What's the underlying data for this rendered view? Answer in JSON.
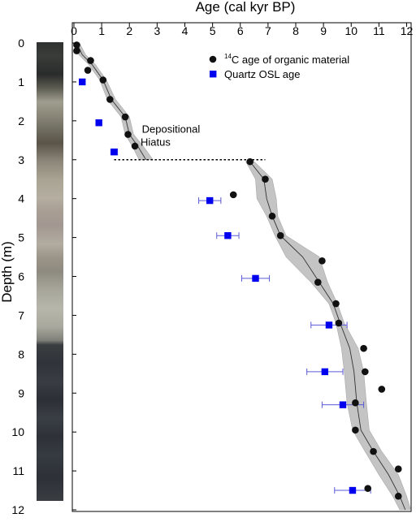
{
  "chart_data": {
    "type": "scatter",
    "xlabel": "Age (cal kyr BP)",
    "ylabel": "Depth (m)",
    "xlim": [
      0,
      12
    ],
    "ylim": [
      0,
      12
    ],
    "x_axis_position": "top",
    "y_axis_inverted": true,
    "x_ticks": [
      "0",
      "1",
      "2",
      "3",
      "4",
      "5",
      "6",
      "7",
      "8",
      "9",
      "10",
      "11",
      "12"
    ],
    "y_ticks": [
      "0",
      "1",
      "2",
      "3",
      "4",
      "5",
      "6",
      "7",
      "8",
      "9",
      "10",
      "11",
      "12"
    ],
    "legend_position": "top-right",
    "grid": false,
    "series": [
      {
        "name": "14C age of organic material",
        "legend_label": {
          "sup": "14",
          "text": "C age of organic material"
        },
        "marker": "circle",
        "color": "#111111",
        "points": [
          {
            "x": 0.1,
            "y": 0.05
          },
          {
            "x": 0.1,
            "y": 0.2
          },
          {
            "x": 0.6,
            "y": 0.45
          },
          {
            "x": 0.5,
            "y": 0.7
          },
          {
            "x": 1.05,
            "y": 0.95
          },
          {
            "x": 1.3,
            "y": 1.45
          },
          {
            "x": 1.85,
            "y": 1.9
          },
          {
            "x": 1.95,
            "y": 2.35
          },
          {
            "x": 2.2,
            "y": 2.65
          },
          {
            "x": 6.35,
            "y": 3.05
          },
          {
            "x": 6.9,
            "y": 3.5
          },
          {
            "x": 5.75,
            "y": 3.9
          },
          {
            "x": 7.15,
            "y": 4.45
          },
          {
            "x": 7.45,
            "y": 4.95
          },
          {
            "x": 8.95,
            "y": 5.6
          },
          {
            "x": 8.8,
            "y": 6.15
          },
          {
            "x": 9.45,
            "y": 6.7
          },
          {
            "x": 9.55,
            "y": 7.2
          },
          {
            "x": 10.45,
            "y": 7.85
          },
          {
            "x": 10.5,
            "y": 8.45
          },
          {
            "x": 11.1,
            "y": 8.9
          },
          {
            "x": 10.15,
            "y": 9.25
          },
          {
            "x": 10.15,
            "y": 9.95
          },
          {
            "x": 10.8,
            "y": 10.5
          },
          {
            "x": 11.7,
            "y": 10.95
          },
          {
            "x": 10.6,
            "y": 11.45
          },
          {
            "x": 11.7,
            "y": 11.65
          }
        ]
      },
      {
        "name": "Quartz OSL age",
        "marker": "square",
        "color": "#0000ee",
        "points": [
          {
            "x": 0.3,
            "y": 1.0,
            "xerr": 0.05
          },
          {
            "x": 0.9,
            "y": 2.05,
            "xerr": 0.05
          },
          {
            "x": 1.45,
            "y": 2.8,
            "xerr": 0.12
          },
          {
            "x": 4.9,
            "y": 4.05,
            "xerr": 0.4
          },
          {
            "x": 5.55,
            "y": 4.95,
            "xerr": 0.4
          },
          {
            "x": 6.55,
            "y": 6.05,
            "xerr": 0.5
          },
          {
            "x": 9.2,
            "y": 7.25,
            "xerr": 0.65
          },
          {
            "x": 9.05,
            "y": 8.45,
            "xerr": 0.65
          },
          {
            "x": 9.7,
            "y": 9.3,
            "xerr": 0.75
          },
          {
            "x": 10.05,
            "y": 11.5,
            "xerr": 0.65
          }
        ]
      }
    ],
    "age_model": {
      "upper": {
        "median": [
          [
            0.1,
            0
          ],
          [
            0.3,
            0.3
          ],
          [
            0.65,
            0.55
          ],
          [
            1.05,
            0.95
          ],
          [
            1.35,
            1.45
          ],
          [
            1.85,
            1.9
          ],
          [
            2.0,
            2.35
          ],
          [
            2.3,
            2.65
          ],
          [
            2.6,
            3.0
          ]
        ],
        "ribbon_half_width": [
          0.1,
          0.12,
          0.12,
          0.12,
          0.15,
          0.15,
          0.15,
          0.2,
          0.25
        ]
      },
      "lower": {
        "median": [
          [
            6.35,
            3.05
          ],
          [
            6.85,
            3.5
          ],
          [
            6.95,
            4.0
          ],
          [
            7.15,
            4.45
          ],
          [
            7.45,
            4.95
          ],
          [
            8.25,
            5.5
          ],
          [
            8.85,
            6.15
          ],
          [
            9.35,
            6.7
          ],
          [
            9.6,
            7.2
          ],
          [
            9.95,
            7.85
          ],
          [
            10.1,
            8.45
          ],
          [
            10.2,
            9.25
          ],
          [
            10.35,
            9.95
          ],
          [
            10.8,
            10.5
          ],
          [
            11.35,
            11.1
          ],
          [
            11.75,
            11.65
          ],
          [
            11.95,
            12.0
          ]
        ],
        "ribbon_half_width": [
          0.15,
          0.3,
          0.35,
          0.2,
          0.2,
          0.6,
          0.3,
          0.15,
          0.15,
          0.3,
          0.35,
          0.35,
          0.3,
          0.3,
          0.35,
          0.25,
          0.2
        ]
      }
    },
    "annotations": [
      {
        "text_lines": [
          "Depositional",
          "Hiatus"
        ],
        "x": 3.5,
        "y": 2.6,
        "hiatus_line": {
          "x_start": 1.45,
          "x_end": 6.9,
          "y": 3.0
        }
      }
    ]
  }
}
